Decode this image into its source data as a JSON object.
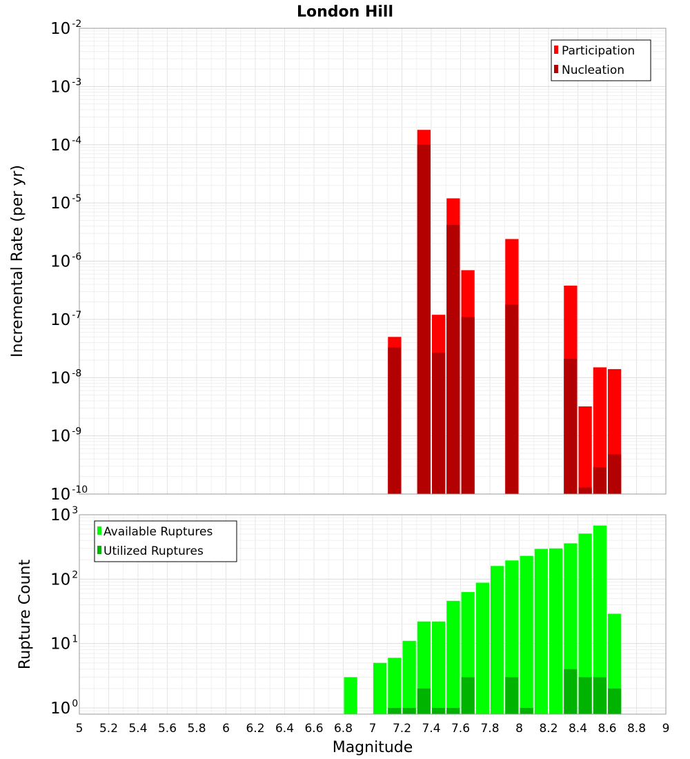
{
  "chart_data": [
    {
      "type": "bar",
      "title": "London Hill",
      "xlabel": "Magnitude",
      "ylabel": "Incremental Rate (per yr)",
      "yscale": "log",
      "xlim": [
        5,
        9
      ],
      "ylim": [
        1e-10,
        0.01
      ],
      "grid": true,
      "legend_position": "top-right",
      "x_ticks": [
        "5",
        "5.2",
        "5.4",
        "5.6",
        "5.8",
        "6",
        "6.2",
        "6.4",
        "6.6",
        "6.8",
        "7",
        "7.2",
        "7.4",
        "7.6",
        "7.8",
        "8",
        "8.2",
        "8.4",
        "8.6",
        "8.8",
        "9"
      ],
      "y_ticks": [
        {
          "base": "10",
          "exp": "-10"
        },
        {
          "base": "10",
          "exp": "-9"
        },
        {
          "base": "10",
          "exp": "-8"
        },
        {
          "base": "10",
          "exp": "-7"
        },
        {
          "base": "10",
          "exp": "-6"
        },
        {
          "base": "10",
          "exp": "-5"
        },
        {
          "base": "10",
          "exp": "-4"
        },
        {
          "base": "10",
          "exp": "-3"
        },
        {
          "base": "10",
          "exp": "-2"
        }
      ],
      "series": [
        {
          "name": "Participation",
          "color": "#ff0000",
          "points": [
            {
              "x": 7.15,
              "y": 5e-08
            },
            {
              "x": 7.35,
              "y": 0.00018
            },
            {
              "x": 7.45,
              "y": 1.2e-07
            },
            {
              "x": 7.55,
              "y": 1.2e-05
            },
            {
              "x": 7.65,
              "y": 7e-07
            },
            {
              "x": 7.95,
              "y": 2.4e-06
            },
            {
              "x": 8.35,
              "y": 3.8e-07
            },
            {
              "x": 8.45,
              "y": 3.2e-09
            },
            {
              "x": 8.55,
              "y": 1.5e-08
            },
            {
              "x": 8.65,
              "y": 1.4e-08
            }
          ]
        },
        {
          "name": "Nucleation",
          "color": "#b30000",
          "points": [
            {
              "x": 7.15,
              "y": 3.3e-08
            },
            {
              "x": 7.35,
              "y": 0.0001
            },
            {
              "x": 7.45,
              "y": 2.7e-08
            },
            {
              "x": 7.55,
              "y": 4.2e-06
            },
            {
              "x": 7.65,
              "y": 1.1e-07
            },
            {
              "x": 7.95,
              "y": 1.8e-07
            },
            {
              "x": 8.35,
              "y": 2.1e-08
            },
            {
              "x": 8.45,
              "y": 1.3e-10
            },
            {
              "x": 8.55,
              "y": 2.9e-10
            },
            {
              "x": 8.65,
              "y": 4.8e-10
            }
          ]
        }
      ]
    },
    {
      "type": "bar",
      "xlabel": "Magnitude",
      "ylabel": "Rupture Count",
      "yscale": "log",
      "xlim": [
        5,
        9
      ],
      "ylim": [
        0.8,
        1000
      ],
      "grid": true,
      "legend_position": "top-left",
      "y_ticks": [
        {
          "base": "10",
          "exp": "0"
        },
        {
          "base": "10",
          "exp": "1"
        },
        {
          "base": "10",
          "exp": "2"
        },
        {
          "base": "10",
          "exp": "3"
        }
      ],
      "series": [
        {
          "name": "Available Ruptures",
          "color": "#00ff00",
          "points": [
            {
              "x": 6.85,
              "y": 3
            },
            {
              "x": 7.05,
              "y": 5
            },
            {
              "x": 7.15,
              "y": 6
            },
            {
              "x": 7.25,
              "y": 11
            },
            {
              "x": 7.35,
              "y": 22
            },
            {
              "x": 7.45,
              "y": 22
            },
            {
              "x": 7.55,
              "y": 46
            },
            {
              "x": 7.65,
              "y": 63
            },
            {
              "x": 7.75,
              "y": 88
            },
            {
              "x": 7.85,
              "y": 160
            },
            {
              "x": 7.95,
              "y": 195
            },
            {
              "x": 8.05,
              "y": 230
            },
            {
              "x": 8.15,
              "y": 295
            },
            {
              "x": 8.25,
              "y": 300
            },
            {
              "x": 8.35,
              "y": 360
            },
            {
              "x": 8.45,
              "y": 510
            },
            {
              "x": 8.55,
              "y": 680
            },
            {
              "x": 8.65,
              "y": 29
            }
          ]
        },
        {
          "name": "Utilized Ruptures",
          "color": "#00b300",
          "points": [
            {
              "x": 7.15,
              "y": 1
            },
            {
              "x": 7.25,
              "y": 1
            },
            {
              "x": 7.35,
              "y": 2
            },
            {
              "x": 7.45,
              "y": 1
            },
            {
              "x": 7.55,
              "y": 1
            },
            {
              "x": 7.65,
              "y": 3
            },
            {
              "x": 7.95,
              "y": 3
            },
            {
              "x": 8.05,
              "y": 1
            },
            {
              "x": 8.35,
              "y": 4
            },
            {
              "x": 8.45,
              "y": 3
            },
            {
              "x": 8.55,
              "y": 3
            },
            {
              "x": 8.65,
              "y": 2
            }
          ]
        }
      ]
    }
  ]
}
